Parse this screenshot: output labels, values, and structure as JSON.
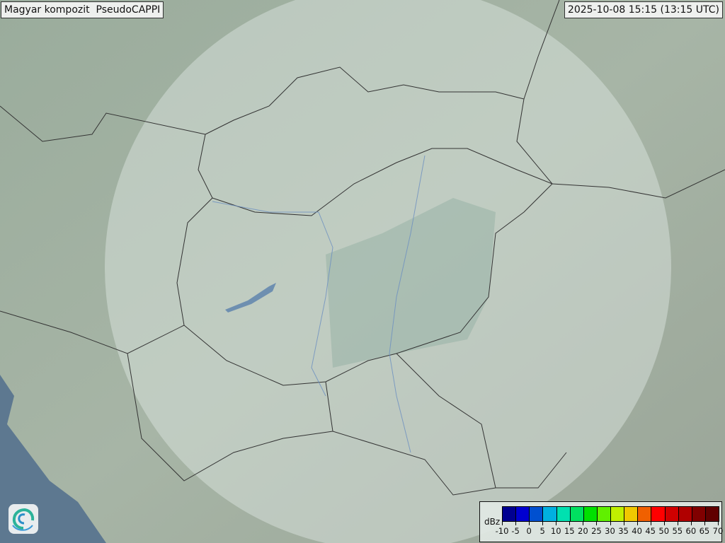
{
  "header": {
    "title": "Magyar kompozit  PseudoCAPPI",
    "timestamp": "2025-10-08 15:15 (13:15 UTC)"
  },
  "map": {
    "land_color": "#a3b3a3",
    "sea_color": "#5d7890",
    "radar_coverage_color": "#dfe8e4"
  },
  "logo": {
    "icon": "swirl-logo-icon"
  },
  "legend": {
    "unit": "dBz",
    "labels": [
      "-10",
      "-5",
      "0",
      "5",
      "10",
      "15",
      "20",
      "25",
      "30",
      "35",
      "40",
      "45",
      "50",
      "55",
      "60",
      "65",
      "70"
    ],
    "colors": [
      "#000090",
      "#0000d0",
      "#0050d0",
      "#00b0e0",
      "#00e0b0",
      "#00e060",
      "#00e000",
      "#60f000",
      "#c0f000",
      "#f0c800",
      "#f06000",
      "#ff0000",
      "#d00000",
      "#b00000",
      "#800000",
      "#600000"
    ]
  }
}
